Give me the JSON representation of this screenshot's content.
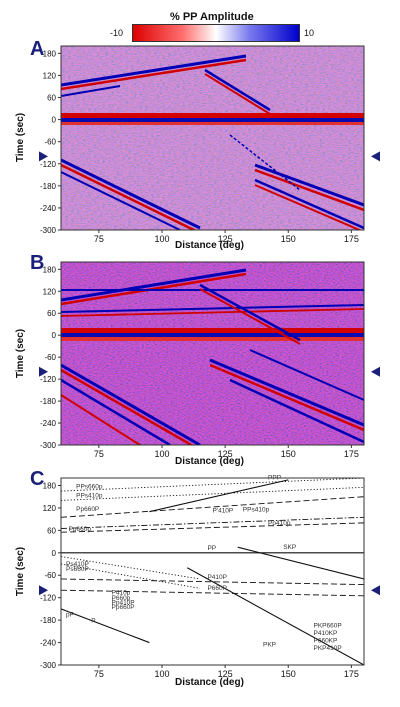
{
  "figure": {
    "colorbar": {
      "title": "% PP Amplitude",
      "min_label": "-10",
      "max_label": "10",
      "colors": [
        "#dd0000",
        "#ffffff",
        "#0000cc"
      ]
    },
    "panels": [
      {
        "letter": "A",
        "xlabel": "Distance (deg)",
        "ylabel": "Time (sec)"
      },
      {
        "letter": "B",
        "xlabel": "Distance (deg)",
        "ylabel": "Time (sec)"
      },
      {
        "letter": "C",
        "xlabel": "Distance (deg)",
        "ylabel": "Time (sec)"
      }
    ],
    "x_ticks": [
      "75",
      "100",
      "125",
      "150",
      "175"
    ],
    "y_ticks": [
      "180",
      "120",
      "60",
      "0",
      "-60",
      "-120",
      "-180",
      "-240",
      "-300"
    ],
    "phase_labels": [
      "PPs660p",
      "PPs410p",
      "PPP",
      "Pp660P",
      "P'410P",
      "Pp410p",
      "PPs410p",
      "Pp660p",
      "SKP",
      "PP",
      "P410P",
      "P660P",
      "Ps410P",
      "Ps660P",
      "P410p",
      "P660p",
      "Pp410P",
      "Pp660P",
      "pP",
      "P",
      "PKP",
      "P410KP",
      "P660KP",
      "PKP660P",
      "PKP410P"
    ],
    "arrow_color": "#1a1f7a"
  },
  "chart_data": [
    {
      "type": "heatmap",
      "title": "",
      "xlabel": "Distance (deg)",
      "ylabel": "Time (sec)",
      "xlim": [
        60,
        180
      ],
      "ylim": [
        -300,
        200
      ],
      "x_ticks": [
        75,
        100,
        125,
        150,
        175
      ],
      "y_ticks": [
        180,
        120,
        60,
        0,
        -60,
        -120,
        -180,
        -240,
        -300
      ],
      "colorbar_range": [
        -10,
        10
      ],
      "colorbar_label": "% PP Amplitude",
      "arrow_marker_time": -100
    },
    {
      "type": "heatmap",
      "title": "",
      "xlabel": "Distance (deg)",
      "ylabel": "Time (sec)",
      "xlim": [
        60,
        180
      ],
      "ylim": [
        -300,
        200
      ],
      "x_ticks": [
        75,
        100,
        125,
        150,
        175
      ],
      "y_ticks": [
        180,
        120,
        60,
        0,
        -60,
        -120,
        -180,
        -240,
        -300
      ],
      "colorbar_range": [
        -10,
        10
      ],
      "colorbar_label": "% PP Amplitude",
      "arrow_marker_time": -100
    },
    {
      "type": "line",
      "title": "",
      "xlabel": "Distance (deg)",
      "ylabel": "Time (sec)",
      "xlim": [
        60,
        180
      ],
      "ylim": [
        -300,
        200
      ],
      "x_ticks": [
        75,
        100,
        125,
        150,
        175
      ],
      "y_ticks": [
        180,
        120,
        60,
        0,
        -60,
        -120,
        -180,
        -240,
        -300
      ],
      "series": [
        {
          "name": "PP",
          "style": "solid",
          "x": [
            60,
            180
          ],
          "y": [
            0,
            0
          ]
        },
        {
          "name": "P",
          "style": "solid",
          "x": [
            60,
            95
          ],
          "y": [
            -150,
            -240
          ]
        },
        {
          "name": "PPP",
          "style": "solid",
          "x": [
            95,
            150
          ],
          "y": [
            110,
            195
          ]
        },
        {
          "name": "SKP",
          "style": "solid",
          "x": [
            130,
            180
          ],
          "y": [
            15,
            -70
          ]
        },
        {
          "name": "PKP",
          "style": "solid",
          "x": [
            110,
            180
          ],
          "y": [
            -40,
            -300
          ]
        },
        {
          "name": "PPs660p",
          "style": "dotted",
          "x": [
            60,
            180
          ],
          "y": [
            165,
            200
          ]
        },
        {
          "name": "PPs410p",
          "style": "dotted",
          "x": [
            60,
            180
          ],
          "y": [
            140,
            175
          ]
        },
        {
          "name": "Pp660P",
          "style": "dashed",
          "x": [
            60,
            180
          ],
          "y": [
            95,
            150
          ]
        },
        {
          "name": "P'410P",
          "style": "dashdot",
          "x": [
            60,
            180
          ],
          "y": [
            65,
            95
          ]
        },
        {
          "name": "Pp410p",
          "style": "dashed",
          "x": [
            60,
            180
          ],
          "y": [
            55,
            80
          ]
        },
        {
          "name": "P410P",
          "style": "dashed",
          "x": [
            60,
            180
          ],
          "y": [
            -70,
            -85
          ]
        },
        {
          "name": "P660P",
          "style": "dashed",
          "x": [
            60,
            180
          ],
          "y": [
            -100,
            -115
          ]
        },
        {
          "name": "Ps410P",
          "style": "dotted",
          "x": [
            60,
            115
          ],
          "y": [
            -10,
            -70
          ]
        },
        {
          "name": "Ps660P",
          "style": "dotted",
          "x": [
            60,
            115
          ],
          "y": [
            -30,
            -95
          ]
        }
      ]
    }
  ]
}
